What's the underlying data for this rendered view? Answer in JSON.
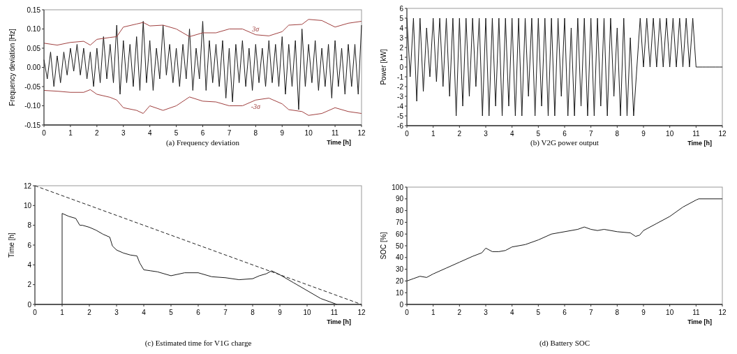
{
  "chart_data": [
    {
      "type": "line",
      "title": "(a) Frequency deviation",
      "xlabel": "Time [h]",
      "ylabel": "Frequency deviation [Hz]",
      "xlim": [
        0,
        12
      ],
      "xticks": [
        0,
        1,
        2,
        3,
        4,
        5,
        6,
        7,
        8,
        9,
        10,
        11,
        12
      ],
      "ylim": [
        -0.15,
        0.15
      ],
      "yticks": [
        {
          "value": -0.15,
          "label": "-0.15"
        },
        {
          "value": -0.1,
          "label": "-0.10"
        },
        {
          "value": -0.05,
          "label": "-0.05"
        },
        {
          "value": 0,
          "label": "0.00"
        },
        {
          "value": 0.05,
          "label": "0.05"
        },
        {
          "value": 0.1,
          "label": "0.10"
        },
        {
          "value": 0.15,
          "label": "0.15"
        }
      ],
      "series": [
        {
          "color": "#1a1a1a",
          "x": [
            0,
            0.125,
            0.25,
            0.375,
            0.5,
            0.625,
            0.75,
            0.875,
            1,
            1.125,
            1.25,
            1.375,
            1.5,
            1.625,
            1.75,
            1.875,
            2,
            2.125,
            2.25,
            2.375,
            2.5,
            2.625,
            2.75,
            2.875,
            3,
            3.125,
            3.25,
            3.375,
            3.5,
            3.625,
            3.75,
            3.875,
            4,
            4.125,
            4.25,
            4.375,
            4.5,
            4.625,
            4.75,
            4.875,
            5,
            5.125,
            5.25,
            5.375,
            5.5,
            5.625,
            5.75,
            5.875,
            6,
            6.125,
            6.25,
            6.375,
            6.5,
            6.625,
            6.75,
            6.875,
            7,
            7.125,
            7.25,
            7.375,
            7.5,
            7.625,
            7.75,
            7.875,
            8,
            8.125,
            8.25,
            8.375,
            8.5,
            8.625,
            8.75,
            8.875,
            9,
            9.125,
            9.25,
            9.375,
            9.5,
            9.625,
            9.75,
            9.875,
            10,
            10.125,
            10.25,
            10.375,
            10.5,
            10.625,
            10.75,
            10.875,
            11,
            11.125,
            11.25,
            11.375,
            11.5,
            11.625,
            11.75,
            11.875,
            12
          ],
          "values": [
            0.02,
            -0.03,
            0.04,
            -0.05,
            0.03,
            -0.04,
            0.04,
            -0.02,
            0.05,
            -0.01,
            0.06,
            -0.02,
            0.05,
            -0.03,
            0.04,
            -0.05,
            0.05,
            -0.04,
            0.08,
            -0.03,
            0.06,
            -0.04,
            0.11,
            -0.07,
            0.07,
            -0.04,
            0.06,
            -0.05,
            0.08,
            -0.06,
            0.12,
            -0.04,
            0.07,
            -0.06,
            0.05,
            -0.03,
            0.11,
            -0.02,
            0.06,
            -0.04,
            0.05,
            -0.05,
            0.06,
            -0.03,
            0.1,
            -0.06,
            0.05,
            -0.03,
            0.12,
            -0.06,
            0.07,
            -0.04,
            0.06,
            -0.05,
            0.07,
            -0.08,
            0.05,
            -0.09,
            0.06,
            -0.04,
            0.07,
            -0.05,
            0.05,
            -0.06,
            0.06,
            -0.04,
            0.05,
            -0.05,
            0.07,
            -0.04,
            0.06,
            -0.05,
            0.08,
            -0.07,
            0.06,
            -0.05,
            0.07,
            -0.11,
            0.1,
            -0.05,
            0.06,
            -0.04,
            0.07,
            -0.06,
            0.05,
            -0.05,
            0.06,
            -0.08,
            0.07,
            -0.05,
            0.05,
            -0.07,
            0.06,
            -0.05,
            0.06,
            -0.07,
            0.11
          ]
        },
        {
          "name": "3σ",
          "color": "#a0403f",
          "x": [
            0,
            0.5,
            1,
            1.5,
            1.75,
            2,
            2.5,
            2.75,
            3,
            3.5,
            3.75,
            4,
            4.5,
            5,
            5.5,
            6,
            6.5,
            7,
            7.5,
            8,
            8.5,
            9,
            9.25,
            9.75,
            10,
            10.5,
            11,
            11.5,
            12
          ],
          "values": [
            0.063,
            0.058,
            0.065,
            0.068,
            0.058,
            0.073,
            0.078,
            0.08,
            0.105,
            0.113,
            0.117,
            0.108,
            0.11,
            0.1,
            0.08,
            0.09,
            0.09,
            0.1,
            0.1,
            0.085,
            0.082,
            0.093,
            0.11,
            0.112,
            0.125,
            0.122,
            0.105,
            0.115,
            0.12
          ]
        },
        {
          "name": "-3σ",
          "color": "#a0403f",
          "x": [
            0,
            0.5,
            1,
            1.5,
            1.75,
            2,
            2.5,
            2.75,
            3,
            3.5,
            3.75,
            4,
            4.5,
            5,
            5.5,
            6,
            6.5,
            7,
            7.5,
            8,
            8.5,
            9,
            9.25,
            9.75,
            10,
            10.5,
            11,
            11.5,
            12
          ],
          "values": [
            -0.06,
            -0.062,
            -0.065,
            -0.065,
            -0.058,
            -0.07,
            -0.078,
            -0.085,
            -0.105,
            -0.112,
            -0.12,
            -0.1,
            -0.112,
            -0.1,
            -0.077,
            -0.088,
            -0.09,
            -0.1,
            -0.1,
            -0.085,
            -0.08,
            -0.095,
            -0.11,
            -0.115,
            -0.125,
            -0.12,
            -0.105,
            -0.115,
            -0.12
          ]
        }
      ]
    },
    {
      "type": "line",
      "title": "(b) V2G power output",
      "xlabel": "Time [h]",
      "ylabel": "Power [kW]",
      "xlim": [
        0,
        12
      ],
      "xticks": [
        0,
        1,
        2,
        3,
        4,
        5,
        6,
        7,
        8,
        9,
        10,
        11,
        12
      ],
      "ylim": [
        -6,
        6
      ],
      "yticks": [
        -6,
        -5,
        -4,
        -3,
        -2,
        -1,
        0,
        1,
        2,
        3,
        4,
        5,
        6
      ],
      "series": [
        {
          "color": "#1a1a1a",
          "x": [
            0,
            0.125,
            0.25,
            0.375,
            0.5,
            0.625,
            0.75,
            0.875,
            1,
            1.125,
            1.25,
            1.375,
            1.5,
            1.625,
            1.75,
            1.875,
            2,
            2.125,
            2.25,
            2.375,
            2.5,
            2.625,
            2.75,
            2.875,
            3,
            3.125,
            3.25,
            3.375,
            3.5,
            3.625,
            3.75,
            3.875,
            4,
            4.125,
            4.25,
            4.375,
            4.5,
            4.625,
            4.75,
            4.875,
            5,
            5.125,
            5.25,
            5.375,
            5.5,
            5.625,
            5.75,
            5.875,
            6,
            6.125,
            6.25,
            6.375,
            6.5,
            6.625,
            6.75,
            6.875,
            7,
            7.125,
            7.25,
            7.375,
            7.5,
            7.625,
            7.75,
            7.875,
            8,
            8.125,
            8.25,
            8.375,
            8.5,
            8.625,
            8.75,
            8.875,
            9,
            9.125,
            9.25,
            9.375,
            9.5,
            9.625,
            9.75,
            9.875,
            10,
            10.125,
            10.25,
            10.375,
            10.5,
            10.625,
            10.75,
            10.875,
            11,
            11.125,
            11.25,
            11.375,
            11.5,
            11.625,
            11.75,
            11.875,
            12
          ],
          "values": [
            5,
            -1,
            5,
            -3.5,
            5,
            -2.5,
            4,
            -1,
            5,
            -1.5,
            5,
            -2,
            5,
            -3,
            5,
            -5,
            5,
            -4,
            5,
            -3,
            5,
            -2,
            5,
            -5,
            5,
            -5,
            5,
            -4,
            5,
            -5,
            5,
            -4,
            5,
            -5,
            5,
            -5,
            5,
            -3,
            5,
            -5,
            5,
            -4,
            5,
            -5,
            5,
            -5,
            5,
            -3,
            5,
            -5,
            4,
            -5,
            5,
            -4,
            5,
            -5,
            5,
            -5,
            5,
            -4,
            5,
            -5,
            5,
            -3,
            4,
            -5,
            5,
            -5,
            3,
            -5,
            0,
            5,
            0,
            5,
            0,
            5,
            0,
            5,
            0,
            5,
            0,
            5,
            0,
            5,
            0,
            5,
            0,
            5,
            0,
            0,
            0,
            0,
            0,
            0,
            0,
            0,
            0
          ]
        }
      ]
    },
    {
      "type": "line",
      "title": "(c) Estimated time for V1G charge",
      "xlabel": "Time [h]",
      "ylabel": "Time [h]",
      "xlim": [
        0,
        12
      ],
      "xticks": [
        0,
        1,
        2,
        3,
        4,
        5,
        6,
        7,
        8,
        9,
        10,
        11,
        12
      ],
      "ylim": [
        0,
        12
      ],
      "yticks": [
        0,
        2,
        4,
        6,
        8,
        10,
        12
      ],
      "series": [
        {
          "color": "#1a1a1a",
          "line_style": "solid",
          "x": [
            1,
            1,
            1.25,
            1.5,
            1.65,
            1.75,
            2,
            2.25,
            2.5,
            2.75,
            2.85,
            3,
            3.25,
            3.5,
            3.75,
            3.85,
            4,
            4.25,
            4.5,
            5,
            5.5,
            6,
            6.5,
            7,
            7.5,
            8,
            8.25,
            8.5,
            8.7,
            9,
            9.5,
            10,
            10.5,
            11,
            11.1
          ],
          "values": [
            0,
            9.2,
            8.9,
            8.7,
            8,
            8,
            7.8,
            7.5,
            7.1,
            6.8,
            5.9,
            5.5,
            5.2,
            5,
            4.9,
            4.2,
            3.5,
            3.4,
            3.3,
            2.9,
            3.2,
            3.2,
            2.8,
            2.7,
            2.5,
            2.6,
            2.9,
            3.1,
            3.4,
            3,
            2.2,
            1.4,
            0.6,
            0.1,
            0
          ]
        },
        {
          "color": "#222222",
          "line_style": "dashed",
          "x": [
            0,
            12
          ],
          "values": [
            12,
            0
          ]
        }
      ]
    },
    {
      "type": "line",
      "title": "(d) Battery SOC",
      "xlabel": "Time [h]",
      "ylabel": "SOC [%]",
      "xlim": [
        0,
        12
      ],
      "xticks": [
        0,
        1,
        2,
        3,
        4,
        5,
        6,
        7,
        8,
        9,
        10,
        11,
        12
      ],
      "ylim": [
        0,
        100
      ],
      "yticks": [
        0,
        10,
        20,
        30,
        40,
        50,
        60,
        70,
        80,
        90,
        100
      ],
      "series": [
        {
          "color": "#1a1a1a",
          "x": [
            0,
            0.25,
            0.5,
            0.75,
            1,
            1.5,
            2,
            2.5,
            2.85,
            3,
            3.25,
            3.5,
            3.75,
            4,
            4.5,
            5,
            5.5,
            6,
            6.5,
            6.75,
            7,
            7.25,
            7.5,
            8,
            8.5,
            8.7,
            8.85,
            9,
            9.5,
            10,
            10.5,
            11,
            11.1,
            12
          ],
          "values": [
            20,
            22,
            24,
            23,
            26,
            31,
            36,
            41,
            44,
            48,
            45,
            45,
            46,
            49,
            51,
            55,
            60,
            62,
            64,
            66,
            64,
            63,
            64,
            62,
            61,
            58,
            59,
            63,
            69,
            75,
            83,
            89,
            90,
            90
          ]
        }
      ]
    }
  ]
}
